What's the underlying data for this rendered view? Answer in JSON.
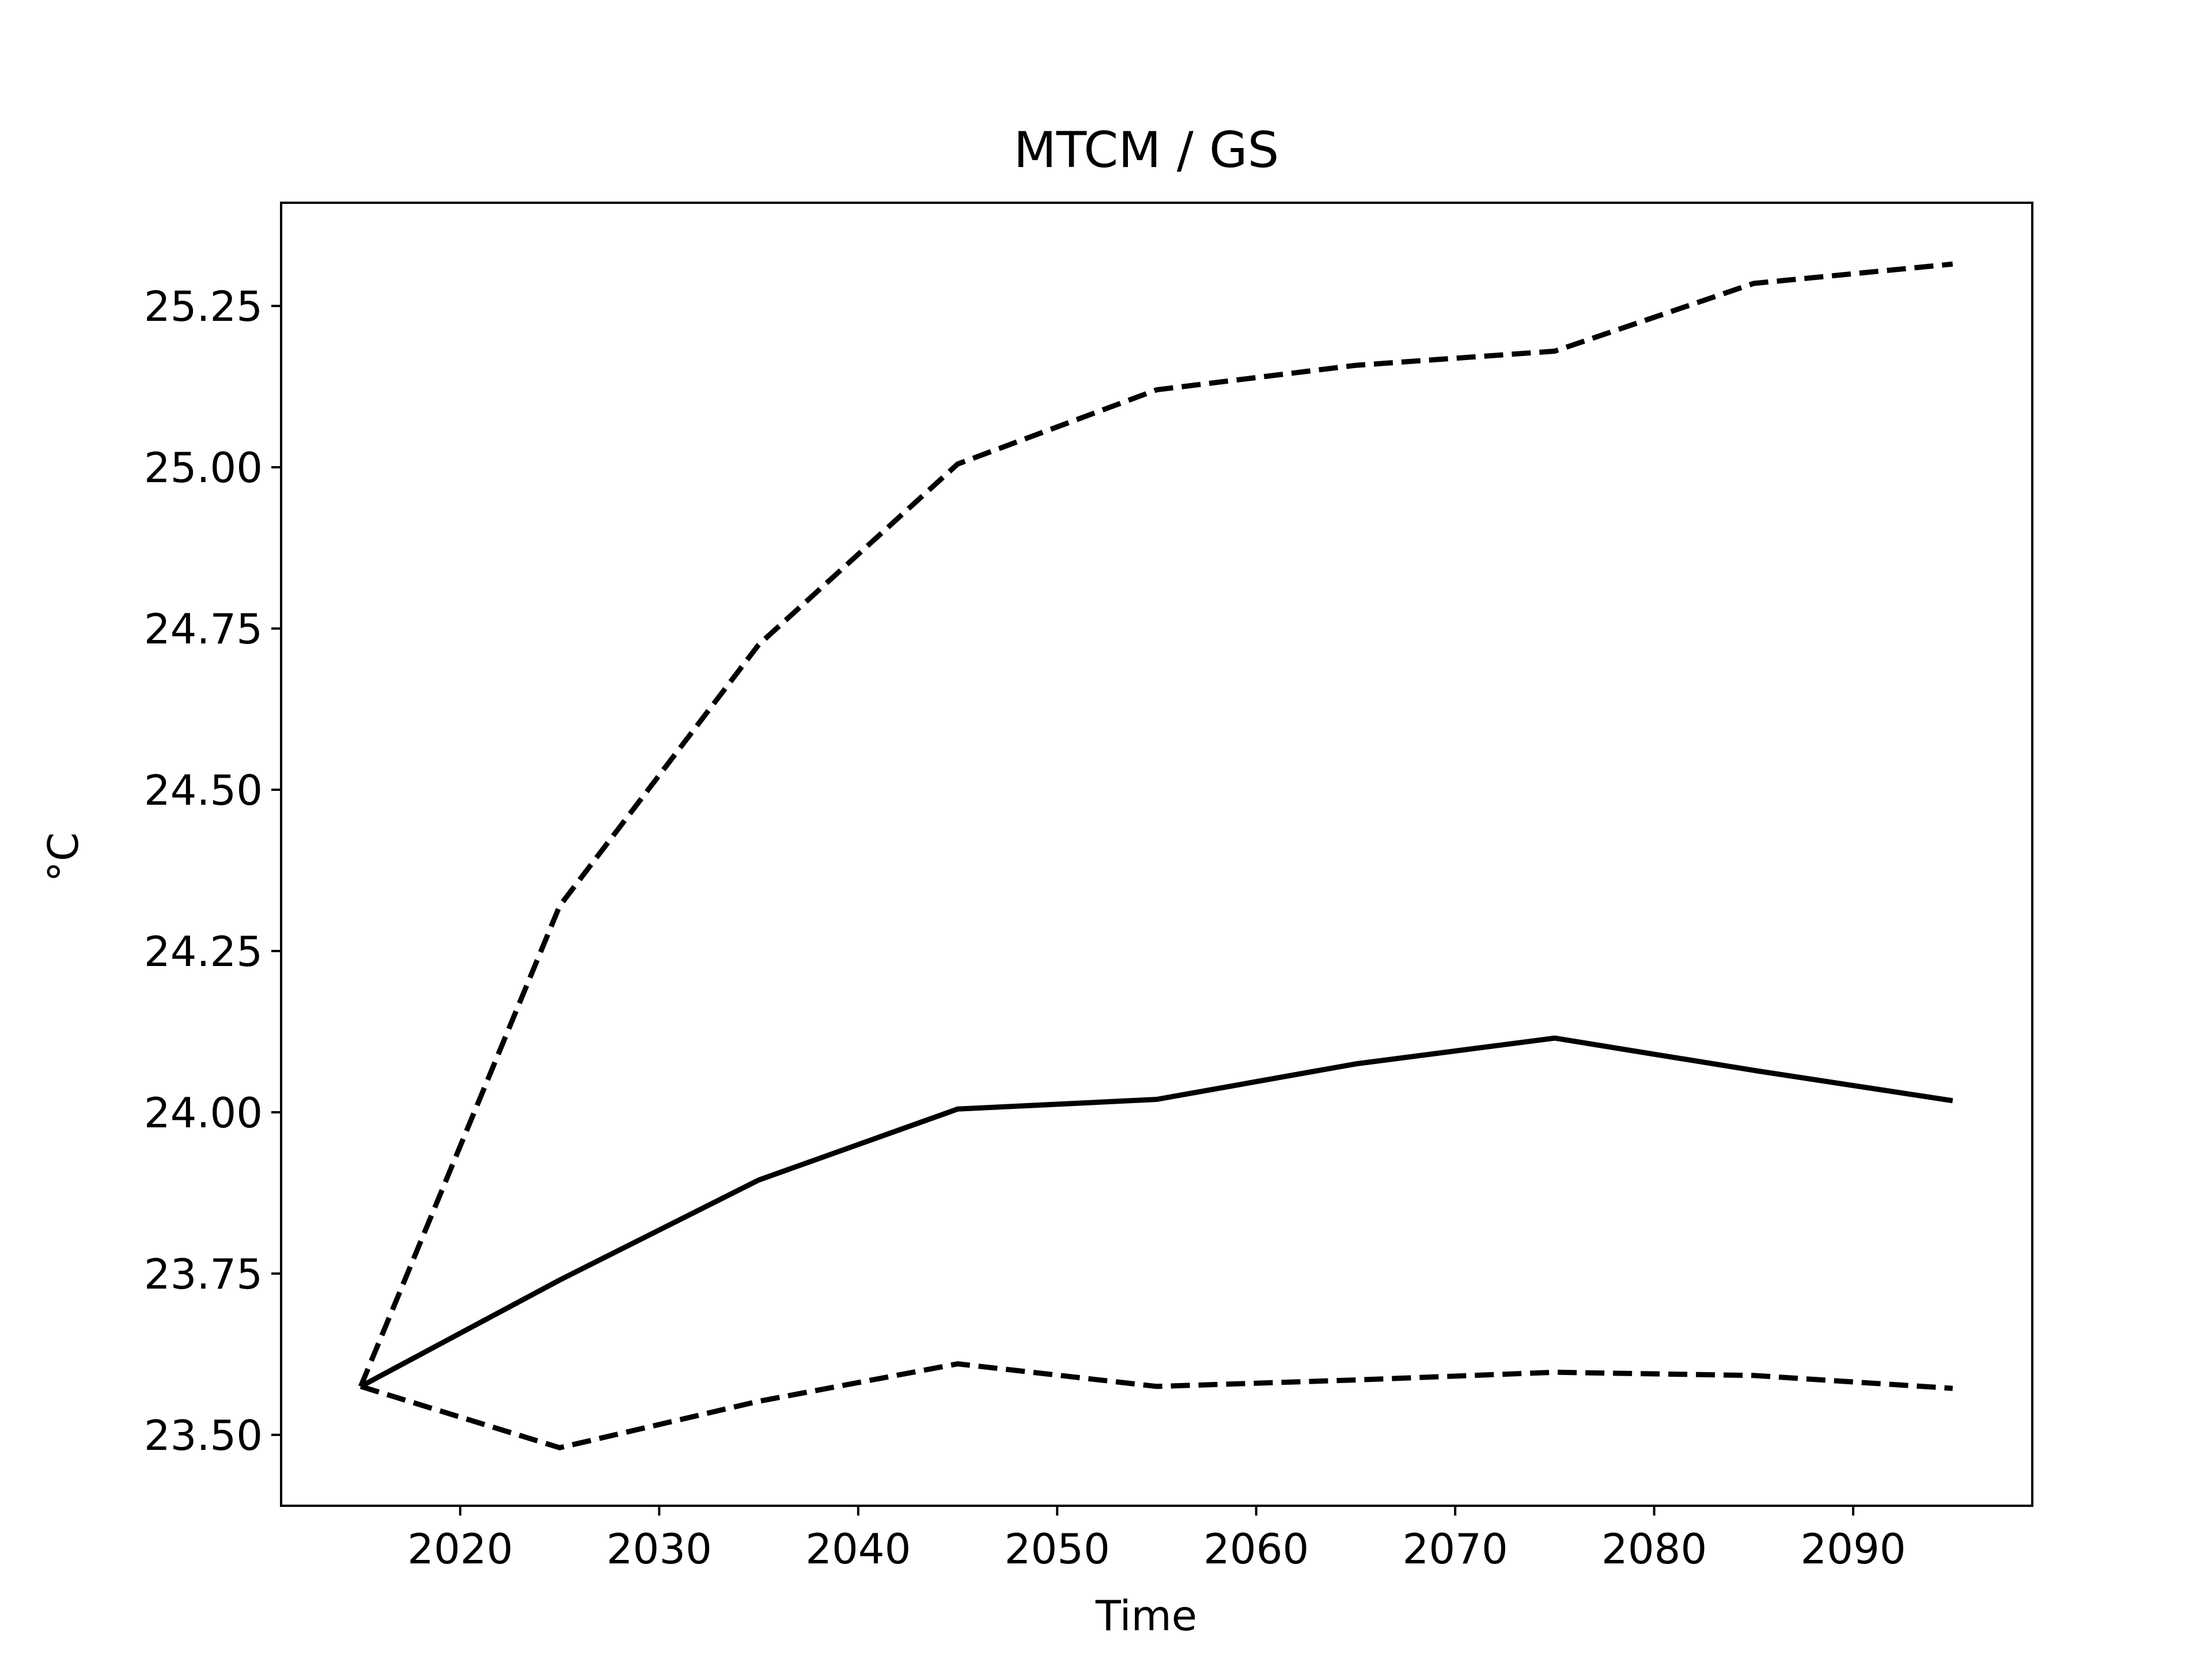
{
  "chart_data": {
    "type": "line",
    "title": "MTCM / GS",
    "xlabel": "Time",
    "ylabel": "°C",
    "xlim": [
      2011,
      2099
    ],
    "ylim": [
      23.39,
      25.41
    ],
    "xticks": [
      2020,
      2030,
      2040,
      2050,
      2060,
      2070,
      2080,
      2090
    ],
    "xtick_labels": [
      "2020",
      "2030",
      "2040",
      "2050",
      "2060",
      "2070",
      "2080",
      "2090"
    ],
    "yticks": [
      23.5,
      23.75,
      24.0,
      24.25,
      24.5,
      24.75,
      25.0,
      25.25
    ],
    "ytick_labels": [
      "23.50",
      "23.75",
      "24.00",
      "24.25",
      "24.50",
      "24.75",
      "25.00",
      "25.25"
    ],
    "grid": false,
    "legend": "none",
    "x": [
      2015,
      2025,
      2035,
      2045,
      2055,
      2065,
      2075,
      2085,
      2095
    ],
    "series": [
      {
        "style": "dashed",
        "color": "#000000",
        "values": [
          23.575,
          24.32,
          24.725,
          25.005,
          25.12,
          25.158,
          25.18,
          25.285,
          25.315
        ]
      },
      {
        "style": "solid",
        "color": "#000000",
        "values": [
          23.575,
          23.74,
          23.895,
          24.005,
          24.02,
          24.075,
          24.115,
          24.065,
          24.018
        ]
      },
      {
        "style": "dashed",
        "color": "#000000",
        "values": [
          23.575,
          23.48,
          23.552,
          23.61,
          23.575,
          23.585,
          23.597,
          23.592,
          23.572
        ]
      }
    ]
  }
}
